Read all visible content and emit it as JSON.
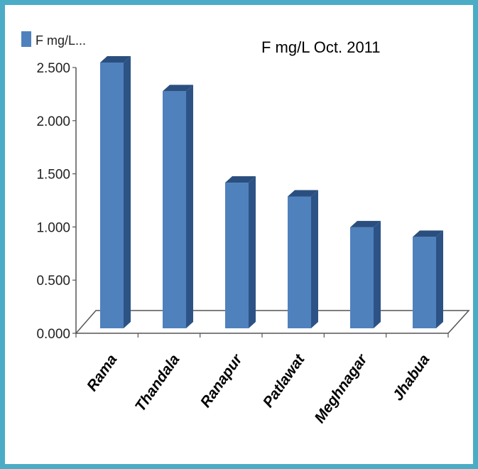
{
  "chart_data": {
    "type": "bar",
    "title": "F mg/L Oct. 2011",
    "legend": {
      "label": "F mg/L...",
      "placement": "top-left"
    },
    "categories": [
      "Rama",
      "Thandala",
      "Ranapur",
      "Patlawat",
      "Meghnagar",
      "Jhabua"
    ],
    "series": [
      {
        "name": "F mg/L...",
        "values": [
          2.5,
          2.23,
          1.37,
          1.24,
          0.95,
          0.86
        ]
      }
    ],
    "ylim": [
      0,
      2.5
    ],
    "yticks": [
      "0.000",
      "0.500",
      "1.000",
      "1.500",
      "2.000",
      "2.500"
    ],
    "xlabel": "",
    "ylabel": "",
    "grid": false,
    "colors": {
      "bar_front": "#4f81bd",
      "bar_side": "#2d5386",
      "bar_top": "#2a4f7e",
      "frame": "#4bacc6"
    }
  }
}
